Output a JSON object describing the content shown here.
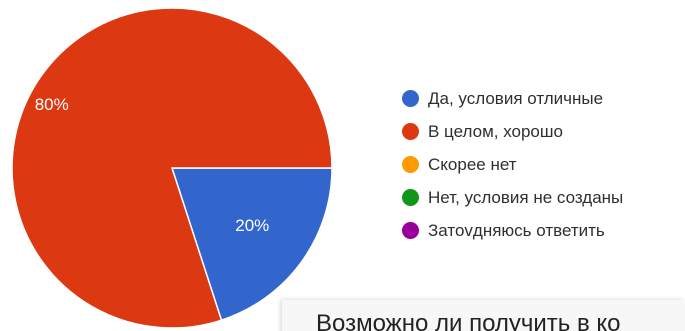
{
  "chart_data": {
    "type": "pie",
    "title": "",
    "series": [
      {
        "values": [
          20,
          80,
          0,
          0,
          0
        ]
      }
    ],
    "categories": [
      "Да, условия отличные",
      "В целом, хорошо",
      "Скорее нет",
      "Нет, условия не созданы",
      "Затоvдняюсь ответить"
    ],
    "slice_labels": [
      "20%",
      "80%",
      "",
      "",
      ""
    ],
    "colors": [
      "#3366cc",
      "#dc3912",
      "#ff9900",
      "#109618",
      "#990099"
    ],
    "legend_position": "right"
  },
  "next_question": {
    "title": "Возможно ли получить в ко"
  }
}
